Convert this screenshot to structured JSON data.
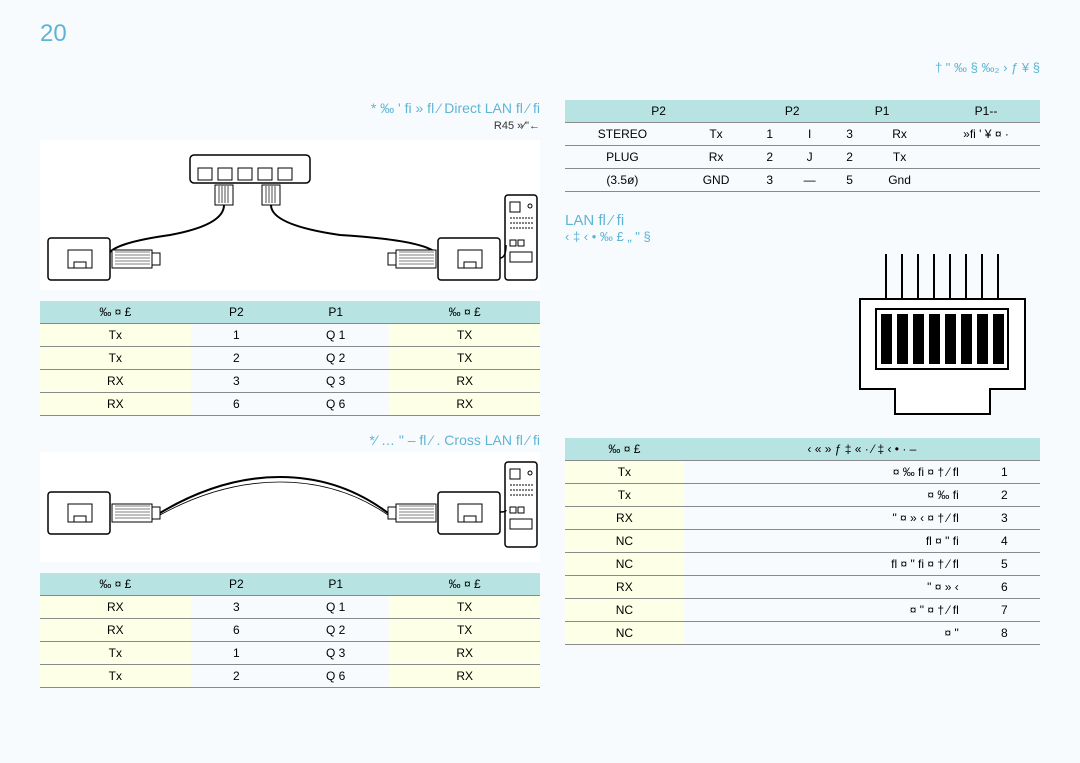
{
  "page_number": "20",
  "top_right_label": "† \" ‰ §  ‰₂ › ƒ ¥ §",
  "left": {
    "section1": {
      "title": "* ‰ ' fi » fl  ⁄ Direct LAN  fl ⁄ fi",
      "sub": "R45      »⁄\"←",
      "table": {
        "headers": [
          "‰ ¤ £",
          "P2",
          "P1",
          "‰ ¤ £"
        ],
        "rows": [
          [
            "Tx",
            "1",
            "Q          1",
            "TX"
          ],
          [
            "Tx",
            "2",
            "Q          2",
            "TX"
          ],
          [
            "RX",
            "3",
            "Q          3",
            "RX"
          ],
          [
            "RX",
            "6",
            "Q          6",
            "RX"
          ]
        ],
        "hl_cols": [
          0,
          3
        ]
      }
    },
    "section2": {
      "title": "*⁄ … \" – fl  ⁄ . Cross LAN  fl ⁄ fi",
      "table": {
        "headers": [
          "‰ ¤ £",
          "P2",
          "P1",
          "‰ ¤ £"
        ],
        "rows": [
          [
            "RX",
            "3",
            "Q          1",
            "TX"
          ],
          [
            "RX",
            "6",
            "Q          2",
            "TX"
          ],
          [
            "Tx",
            "1",
            "Q          3",
            "RX"
          ],
          [
            "Tx",
            "2",
            "Q          6",
            "RX"
          ]
        ],
        "hl_cols": [
          0,
          3
        ]
      }
    }
  },
  "right": {
    "top_table": {
      "headers": [
        "P2",
        "P2",
        "P1",
        "P1--"
      ],
      "rows": [
        [
          "STEREO",
          "Tx",
          "1",
          "I",
          "3",
          "Rx",
          "»fi '  ¥ ¤ ·"
        ],
        [
          "PLUG",
          "Rx",
          "2",
          "J",
          "2",
          "Tx",
          ""
        ],
        [
          "(3.5ø)",
          "GND",
          "3",
          "—",
          "5",
          "Gnd",
          ""
        ]
      ]
    },
    "lan_title": "LAN  fl ⁄ fi",
    "lan_sub": "‹ ‡ ‹ •    ‰ £ „ \" §",
    "lan_table": {
      "headers": [
        "‰ ¤ £",
        "‹ « » ƒ ‡ « ·   ⁄ ‡ ‹ •        · –"
      ],
      "rows": [
        [
          "Tx",
          "¤ ‰ fi ¤   † ⁄ fl",
          "1"
        ],
        [
          "Tx",
          "¤ ‰ fi",
          "2"
        ],
        [
          "RX",
          "\" ¤ » ‹ ¤    † ⁄ fl",
          "3"
        ],
        [
          "NC",
          "fl ¤ \" fi",
          "4"
        ],
        [
          "NC",
          "fl ¤ \" fi ¤    † ⁄ fl",
          "5"
        ],
        [
          "RX",
          "\" ¤ » ‹",
          "6"
        ],
        [
          "NC",
          "¤ \" ¤   † ⁄ fl",
          "7"
        ],
        [
          "NC",
          "¤ \"",
          "8"
        ]
      ],
      "hl_col": 0
    }
  },
  "colors": {
    "accent": "#5fb4d4",
    "header_bg": "#b7e4e2",
    "highlight_bg": "#fdffe6",
    "border": "#8a8a8a"
  }
}
